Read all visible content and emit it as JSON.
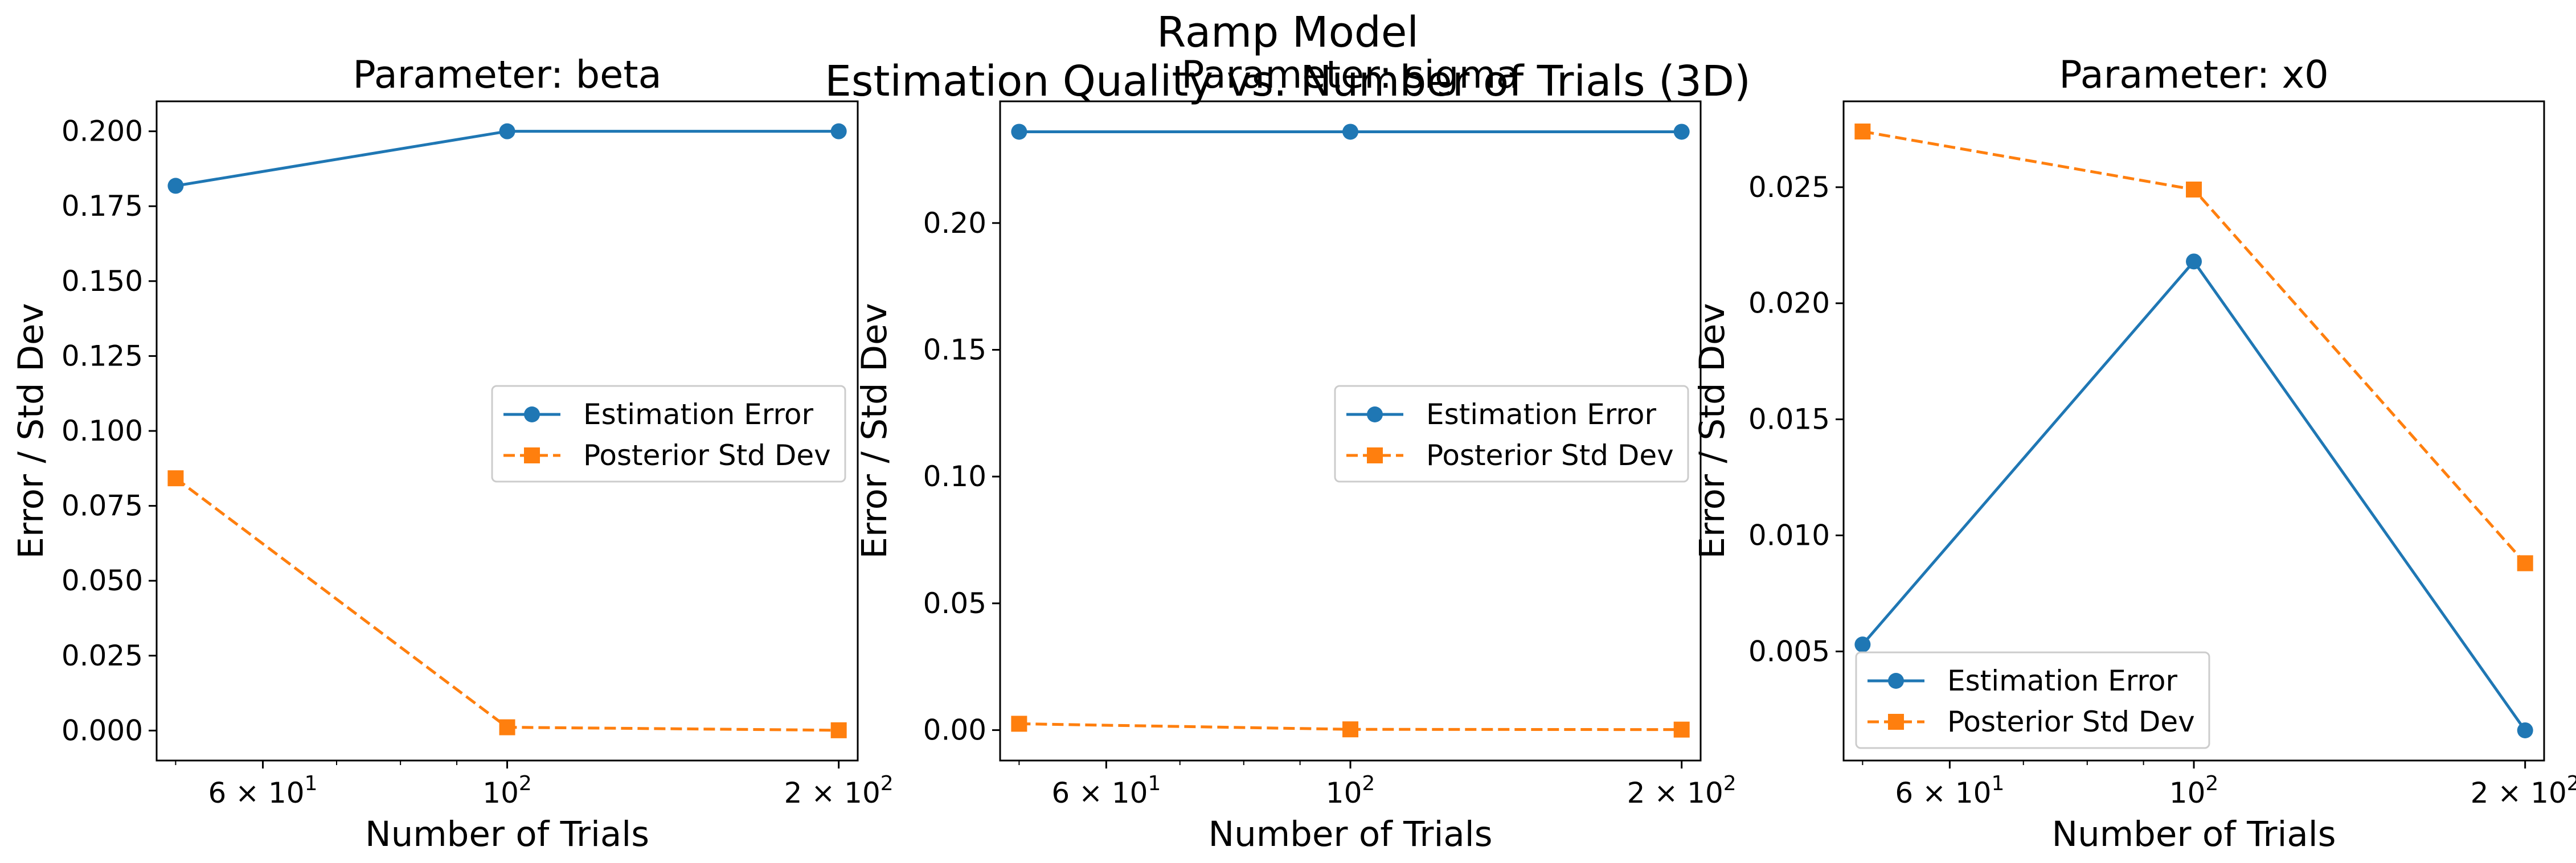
{
  "figure": {
    "suptitle_line1": "Ramp Model",
    "suptitle_line2": "Estimation Quality vs. Number of Trials (3D)"
  },
  "colors": {
    "estimation_error": "#1f77b4",
    "posterior_std": "#ff7f0e"
  },
  "chart_data": [
    {
      "type": "line",
      "title": "Parameter: beta",
      "xlabel": "Number of Trials",
      "ylabel": "Error / Std Dev",
      "xscale": "log",
      "x": [
        50,
        100,
        200
      ],
      "x_tick_labels": [
        "6 × 10^1",
        "10^2",
        "2 × 10^2"
      ],
      "y_ticks": [
        "0.000",
        "0.025",
        "0.050",
        "0.075",
        "0.100",
        "0.125",
        "0.150",
        "0.175",
        "0.200"
      ],
      "ylim": [
        -0.01,
        0.21
      ],
      "legend": "center-right",
      "series": [
        {
          "name": "Estimation Error",
          "marker": "circle",
          "linestyle": "solid",
          "values": [
            0.1818,
            0.2,
            0.2
          ]
        },
        {
          "name": "Posterior Std Dev",
          "marker": "square",
          "linestyle": "dashed",
          "values": [
            0.0842,
            0.0011,
            0.0001
          ]
        }
      ]
    },
    {
      "type": "line",
      "title": "Parameter: sigma",
      "xlabel": "Number of Trials",
      "ylabel": "Error / Std Dev",
      "xscale": "log",
      "x": [
        50,
        100,
        200
      ],
      "x_tick_labels": [
        "6 × 10^1",
        "10^2",
        "2 × 10^2"
      ],
      "y_ticks": [
        "0.00",
        "0.05",
        "0.10",
        "0.15",
        "0.20"
      ],
      "ylim": [
        -0.012,
        0.248
      ],
      "legend": "center-right",
      "series": [
        {
          "name": "Estimation Error",
          "marker": "circle",
          "linestyle": "solid",
          "values": [
            0.236,
            0.236,
            0.236
          ]
        },
        {
          "name": "Posterior Std Dev",
          "marker": "square",
          "linestyle": "dashed",
          "values": [
            0.0025,
            0.0003,
            0.0002
          ]
        }
      ]
    },
    {
      "type": "line",
      "title": "Parameter: x0",
      "xlabel": "Number of Trials",
      "ylabel": "Error / Std Dev",
      "xscale": "log",
      "x": [
        50,
        100,
        200
      ],
      "x_tick_labels": [
        "6 × 10^1",
        "10^2",
        "2 × 10^2"
      ],
      "y_ticks": [
        "0.005",
        "0.010",
        "0.015",
        "0.020",
        "0.025"
      ],
      "ylim": [
        0.0003,
        0.0287
      ],
      "legend": "lower-left",
      "series": [
        {
          "name": "Estimation Error",
          "marker": "circle",
          "linestyle": "solid",
          "values": [
            0.0053,
            0.0218,
            0.0016
          ]
        },
        {
          "name": "Posterior Std Dev",
          "marker": "square",
          "linestyle": "dashed",
          "values": [
            0.0274,
            0.0249,
            0.0088
          ]
        }
      ]
    }
  ]
}
